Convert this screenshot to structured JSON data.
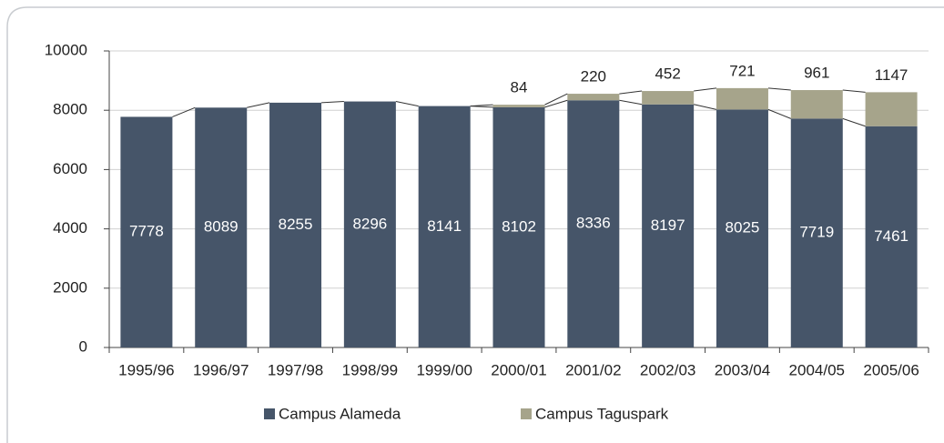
{
  "chart_data": {
    "type": "stacked_bar",
    "categories": [
      "1995/96",
      "1996/97",
      "1997/98",
      "1998/99",
      "1999/00",
      "2000/01",
      "2001/02",
      "2002/03",
      "2003/04",
      "2004/05",
      "2005/06"
    ],
    "series": [
      {
        "name": "Campus Alameda",
        "color": "#465569",
        "values": [
          7778,
          8089,
          8255,
          8296,
          8141,
          8102,
          8336,
          8197,
          8025,
          7719,
          7461
        ]
      },
      {
        "name": "Campus Taguspark",
        "color": "#a6a48b",
        "values": [
          null,
          null,
          null,
          null,
          null,
          84,
          220,
          452,
          721,
          961,
          1147
        ]
      }
    ],
    "ylim": [
      0,
      10000
    ],
    "yticks": [
      0,
      2000,
      4000,
      6000,
      8000,
      10000
    ],
    "grid": true
  }
}
